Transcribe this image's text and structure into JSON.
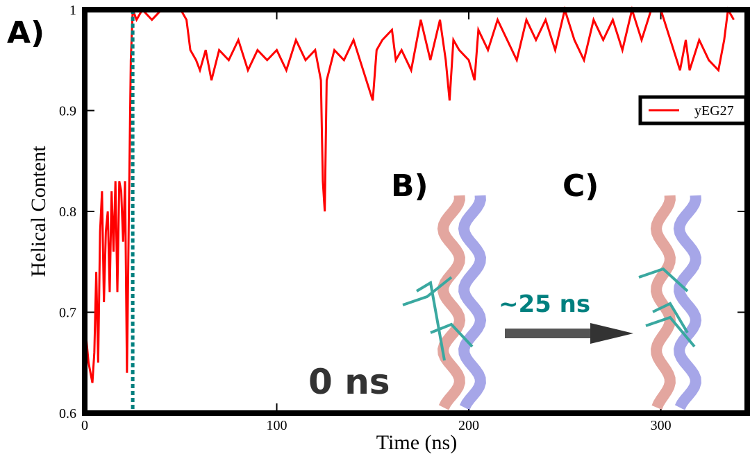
{
  "chart_data": {
    "type": "line",
    "xlabel": "Time (ns)",
    "ylabel": "Helical Content",
    "xlim": [
      0,
      345
    ],
    "ylim": [
      0.6,
      1
    ],
    "xticks": [
      0,
      100,
      200,
      300
    ],
    "yticks": [
      0.6,
      0.7,
      0.8,
      0.9,
      1
    ],
    "legend": "upper right",
    "vline": {
      "x": 25,
      "color": "#00807f"
    },
    "annotations": [
      "A)",
      "B)",
      "C)",
      "~25 ns",
      "0 ns"
    ],
    "series": [
      {
        "name": "yEG27",
        "color": "#ff0000",
        "x": [
          0,
          2,
          4,
          5,
          6,
          7,
          8,
          9,
          10,
          11,
          12,
          13,
          14,
          15,
          16,
          17,
          18,
          19,
          20,
          21,
          22,
          23,
          24,
          25,
          27,
          30,
          35,
          40,
          50,
          53,
          55,
          58,
          60,
          63,
          66,
          70,
          75,
          80,
          85,
          90,
          95,
          100,
          105,
          110,
          115,
          120,
          123,
          124,
          125,
          126,
          130,
          135,
          140,
          145,
          150,
          152,
          155,
          160,
          162,
          165,
          170,
          175,
          180,
          185,
          188,
          190,
          192,
          195,
          200,
          203,
          205,
          210,
          215,
          220,
          225,
          230,
          235,
          240,
          245,
          250,
          255,
          260,
          265,
          270,
          275,
          280,
          285,
          290,
          295,
          300,
          305,
          310,
          313,
          315,
          320,
          325,
          330,
          333,
          335,
          338
        ],
        "values": [
          0.69,
          0.65,
          0.63,
          0.66,
          0.74,
          0.65,
          0.78,
          0.82,
          0.71,
          0.78,
          0.8,
          0.72,
          0.82,
          0.76,
          0.83,
          0.72,
          0.83,
          0.82,
          0.77,
          0.83,
          0.64,
          0.8,
          0.95,
          1,
          0.99,
          1,
          0.99,
          1,
          1,
          0.99,
          0.96,
          0.95,
          0.94,
          0.96,
          0.93,
          0.96,
          0.95,
          0.97,
          0.94,
          0.96,
          0.95,
          0.96,
          0.94,
          0.97,
          0.95,
          0.96,
          0.93,
          0.83,
          0.8,
          0.93,
          0.96,
          0.95,
          0.97,
          0.94,
          0.91,
          0.96,
          0.97,
          0.98,
          0.95,
          0.96,
          0.94,
          0.99,
          0.95,
          0.99,
          0.95,
          0.91,
          0.97,
          0.96,
          0.95,
          0.93,
          0.98,
          0.96,
          0.99,
          0.97,
          0.95,
          0.99,
          0.97,
          0.99,
          0.96,
          1,
          0.97,
          0.95,
          0.99,
          0.97,
          0.99,
          0.96,
          1,
          0.97,
          1,
          1,
          0.97,
          0.94,
          0.97,
          0.94,
          0.97,
          0.95,
          0.94,
          0.97,
          1,
          0.99
        ]
      }
    ]
  }
}
